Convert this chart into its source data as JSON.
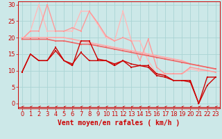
{
  "xlabel": "Vent moyen/en rafales ( km/h )",
  "xlim": [
    -0.5,
    23.5
  ],
  "ylim": [
    -1.5,
    31
  ],
  "yticks": [
    0,
    5,
    10,
    15,
    20,
    25,
    30
  ],
  "xticks": [
    0,
    1,
    2,
    3,
    4,
    5,
    6,
    7,
    8,
    9,
    10,
    11,
    12,
    13,
    14,
    15,
    16,
    17,
    18,
    19,
    20,
    21,
    22,
    23
  ],
  "background_color": "#cce8e8",
  "grid_color": "#aad4d4",
  "series": [
    {
      "x": [
        0,
        1,
        2,
        3,
        4,
        5,
        6,
        7,
        8,
        9,
        10,
        11,
        12,
        13,
        14,
        15,
        16,
        17,
        18,
        19,
        20,
        21,
        22,
        23
      ],
      "y": [
        9.5,
        15,
        13,
        13,
        16,
        13,
        12,
        15.5,
        13,
        13,
        13,
        11.5,
        13,
        11,
        11.5,
        11,
        8.5,
        8,
        7,
        7,
        6.5,
        0,
        8,
        8
      ],
      "color": "#cc0000",
      "lw": 1.0,
      "marker": "s",
      "ms": 1.8
    },
    {
      "x": [
        0,
        1,
        2,
        3,
        4,
        5,
        6,
        7,
        8,
        9,
        10,
        11,
        12,
        13,
        14,
        15,
        16,
        17,
        18,
        19,
        20,
        21,
        22,
        23
      ],
      "y": [
        9.5,
        15,
        13,
        13,
        17,
        13,
        11.5,
        19,
        19,
        13.5,
        13,
        12,
        13,
        12,
        11.5,
        11.5,
        9,
        8.5,
        7,
        7,
        7,
        0,
        5.5,
        8
      ],
      "color": "#cc0000",
      "lw": 1.0,
      "marker": "s",
      "ms": 1.8
    },
    {
      "x": [
        0,
        1,
        2,
        3,
        4,
        5,
        6,
        7,
        8,
        9,
        10,
        11,
        12,
        13,
        14,
        15,
        16,
        17,
        18,
        19,
        20,
        21,
        22,
        23
      ],
      "y": [
        19.5,
        19.5,
        19.5,
        19.5,
        19,
        19,
        18.5,
        18,
        18,
        17.5,
        17,
        16.5,
        16,
        15.5,
        15,
        14.5,
        14,
        13.5,
        13,
        12.5,
        12,
        11.5,
        11,
        10.5
      ],
      "color": "#ee6666",
      "lw": 1.2,
      "marker": "s",
      "ms": 1.8
    },
    {
      "x": [
        0,
        1,
        2,
        3,
        4,
        5,
        6,
        7,
        8,
        9,
        10,
        11,
        12,
        13,
        14,
        15,
        16,
        17,
        18,
        19,
        20,
        21,
        22,
        23
      ],
      "y": [
        20,
        20,
        20,
        20,
        20,
        20,
        19.5,
        19,
        18.5,
        18,
        17.5,
        17,
        16.5,
        16,
        15.5,
        15,
        14.5,
        14,
        13.5,
        13,
        12,
        11.5,
        11,
        10.5
      ],
      "color": "#ffaaaa",
      "lw": 1.2,
      "marker": "s",
      "ms": 1.8
    },
    {
      "x": [
        0,
        1,
        2,
        3,
        4,
        5,
        6,
        7,
        8,
        9,
        10,
        11,
        12,
        13,
        14,
        15,
        16,
        17,
        18,
        19,
        20,
        21,
        22,
        23
      ],
      "y": [
        19.5,
        22,
        22,
        30,
        22,
        22,
        23,
        22,
        28,
        24.5,
        20.5,
        19,
        20,
        19,
        13,
        19.5,
        11,
        9,
        9,
        9,
        11,
        10.5,
        10,
        9.5
      ],
      "color": "#ff9999",
      "lw": 1.0,
      "marker": "s",
      "ms": 1.8
    },
    {
      "x": [
        0,
        1,
        2,
        3,
        4,
        5,
        6,
        7,
        8,
        9,
        10,
        11,
        12,
        13,
        14,
        15,
        16,
        17,
        18,
        19,
        20,
        21,
        22,
        23
      ],
      "y": [
        19.5,
        22,
        30,
        22,
        22,
        22,
        22,
        28,
        28,
        24,
        20,
        19,
        28,
        19,
        19,
        13,
        9,
        9,
        9,
        9,
        10.5,
        10,
        10,
        9.5
      ],
      "color": "#ffbbbb",
      "lw": 1.0,
      "marker": "s",
      "ms": 1.8
    }
  ],
  "arrow_color": "#cc0000",
  "xlabel_color": "#cc0000",
  "xlabel_fontsize": 7,
  "tick_fontsize": 6
}
